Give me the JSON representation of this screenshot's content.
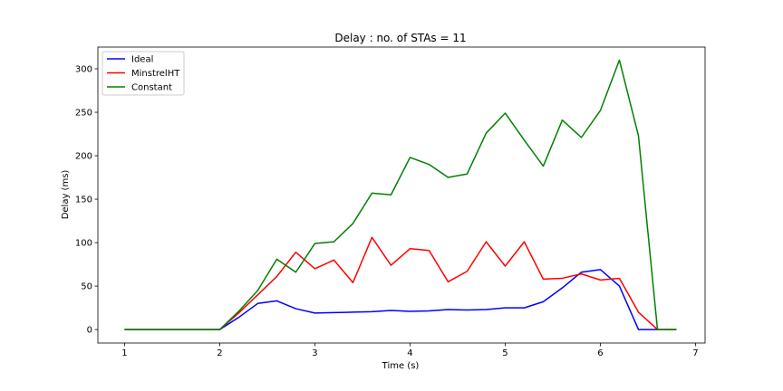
{
  "chart_data": {
    "type": "line",
    "title": "Delay : no. of STAs = 11",
    "xlabel": "Time (s)",
    "ylabel": "Delay (ms)",
    "xlim": [
      0.72,
      7.1
    ],
    "ylim": [
      -15.5,
      325
    ],
    "xticks": [
      1,
      2,
      3,
      4,
      5,
      6,
      7
    ],
    "yticks": [
      0,
      50,
      100,
      150,
      200,
      250,
      300
    ],
    "grid": false,
    "legend_position": "top-left",
    "x": [
      1.0,
      1.2,
      1.4,
      1.6,
      1.8,
      2.0,
      2.2,
      2.4,
      2.6,
      2.8,
      3.0,
      3.2,
      3.4,
      3.6,
      3.8,
      4.0,
      4.2,
      4.4,
      4.6,
      4.8,
      5.0,
      5.2,
      5.4,
      5.6,
      5.8,
      6.0,
      6.2,
      6.4,
      6.6,
      6.8
    ],
    "series": [
      {
        "name": "Ideal",
        "color": "#0000ff",
        "values": [
          0,
          0,
          0,
          0,
          0,
          0,
          14,
          30,
          33,
          24,
          19,
          19.5,
          20,
          20.5,
          22,
          21,
          21.5,
          23,
          22.5,
          23,
          25,
          25,
          32,
          48,
          66,
          69,
          50,
          0,
          0,
          0
        ]
      },
      {
        "name": "MinstrelHT",
        "color": "#ff0000",
        "values": [
          0,
          0,
          0,
          0,
          0,
          0,
          19,
          40,
          61,
          89,
          70,
          80,
          54,
          106,
          74,
          93,
          91,
          55,
          67,
          101,
          73,
          101,
          58,
          59,
          64,
          57,
          59,
          20,
          0,
          0
        ]
      },
      {
        "name": "Constant",
        "color": "#008000",
        "values": [
          0,
          0,
          0,
          0,
          0,
          0,
          21,
          45,
          81,
          66,
          99,
          101,
          122,
          157,
          155,
          198,
          190,
          175,
          179,
          226,
          249,
          218,
          188,
          241,
          221,
          252,
          310,
          223,
          0,
          0
        ]
      }
    ]
  }
}
